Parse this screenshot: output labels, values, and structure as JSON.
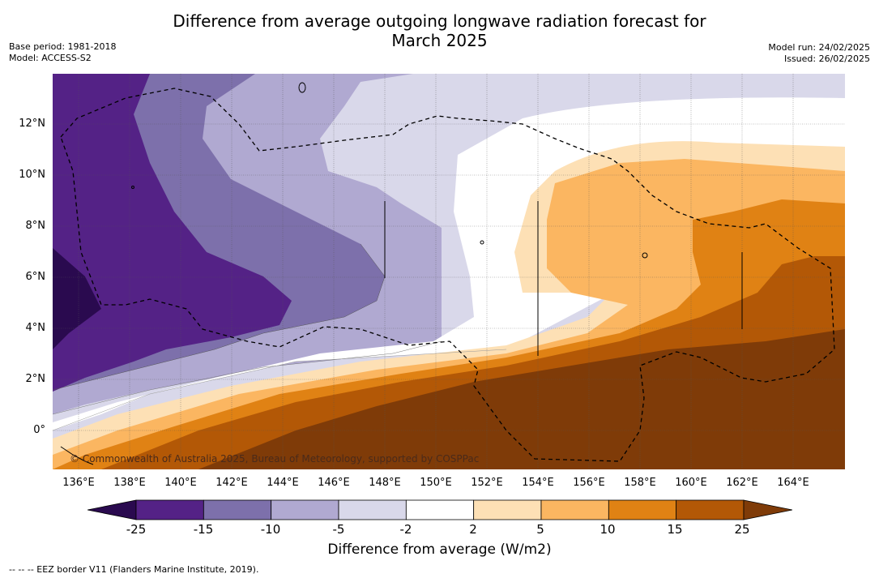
{
  "title_line1": "Difference from average outgoing longwave radiation forecast for",
  "title_line2": "March 2025",
  "meta": {
    "base_period": "Base period: 1981-2018",
    "model": "Model: ACCESS-S2",
    "model_run": "Model run: 24/02/2025",
    "issued": "Issued: 26/02/2025"
  },
  "axes": {
    "y_ticks": [
      "12°N",
      "10°N",
      "8°N",
      "6°N",
      "4°N",
      "2°N",
      "0°"
    ],
    "x_ticks": [
      "136°E",
      "138°E",
      "140°E",
      "142°E",
      "144°E",
      "146°E",
      "148°E",
      "150°E",
      "152°E",
      "154°E",
      "156°E",
      "158°E",
      "160°E",
      "162°E",
      "164°E"
    ]
  },
  "copyright": "© Commonwealth of Australia 2025, Bureau of Meteorology, supported by COSPPac",
  "colorbar": {
    "ticks": [
      "-25",
      "-15",
      "-10",
      "-5",
      "-2",
      "2",
      "5",
      "10",
      "15",
      "25"
    ],
    "colors": [
      "#2a0a4f",
      "#542286",
      "#7d70ab",
      "#b0a9d1",
      "#d9d8ea",
      "#ffffff",
      "#fde0b5",
      "#fbb661",
      "#e08214",
      "#b35806",
      "#7f3b08"
    ],
    "label": "Difference from average (W/m2)"
  },
  "footnote": "-- -- -- EEZ border V11 (Flanders Marine Institute, 2019)."
}
